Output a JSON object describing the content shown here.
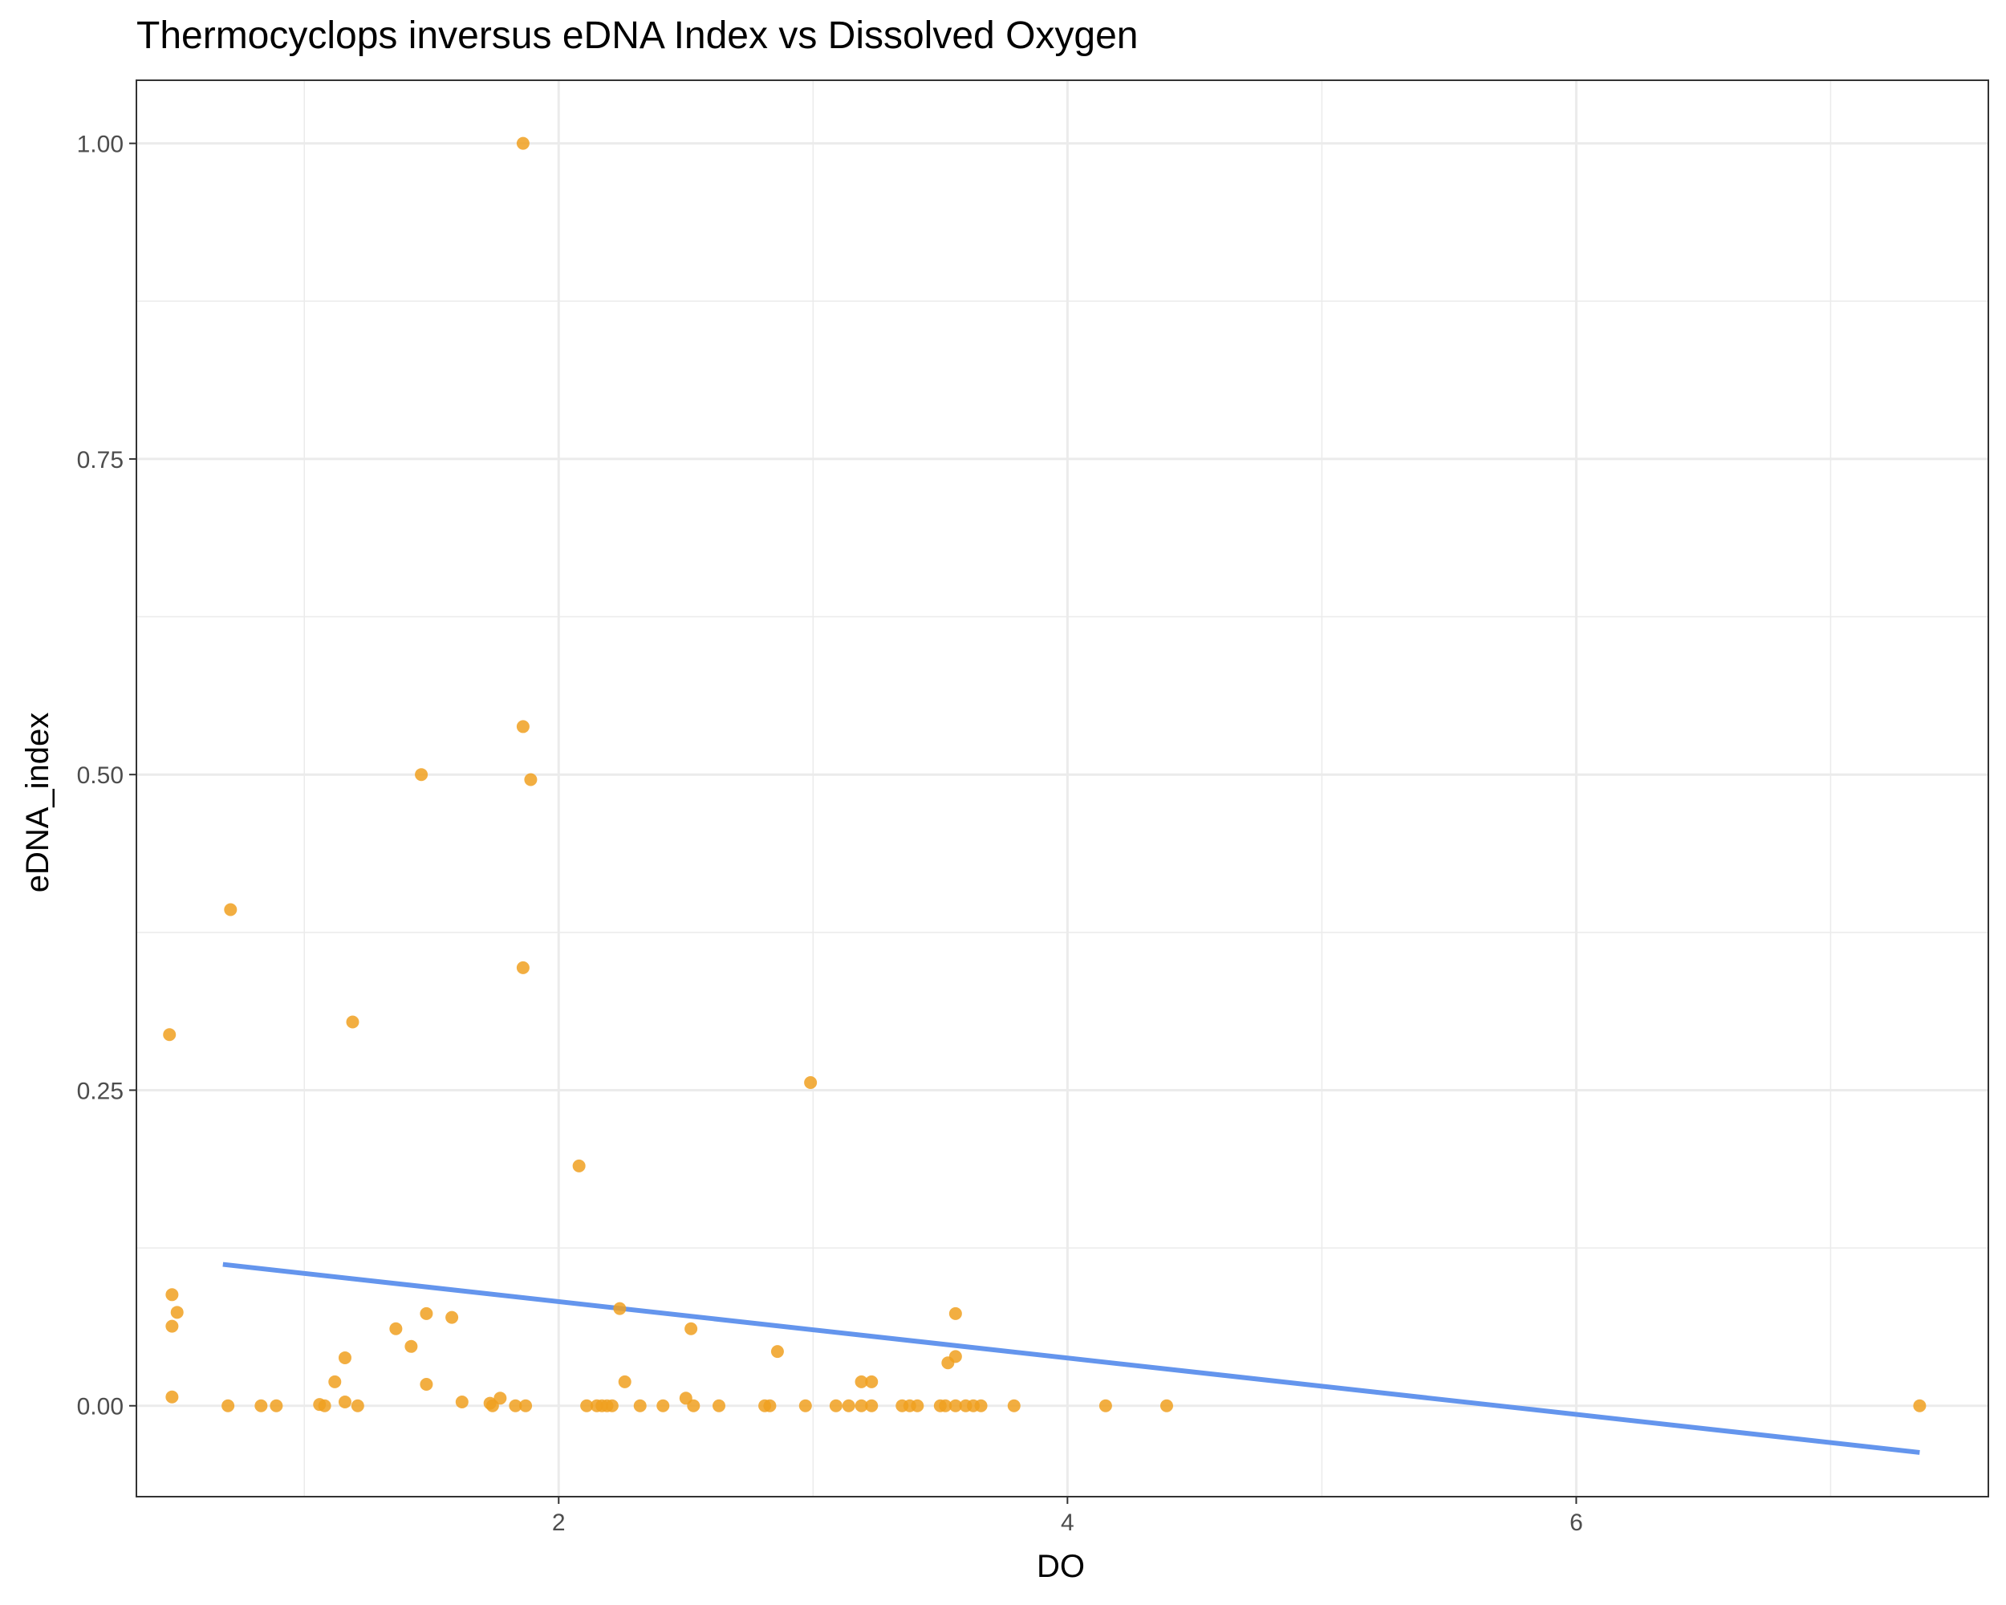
{
  "chart_data": {
    "type": "scatter",
    "title": "Thermocyclops inversus eDNA Index vs Dissolved Oxygen",
    "xlabel": "DO",
    "ylabel": "eDNA_index",
    "xlim": [
      0.34,
      7.62
    ],
    "ylim": [
      -0.072,
      1.05
    ],
    "x_ticks": [
      2,
      4,
      6
    ],
    "x_tick_labels": [
      "2",
      "4",
      "6"
    ],
    "x_minor_ticks": [
      1,
      3,
      5,
      7
    ],
    "y_ticks": [
      0,
      0.25,
      0.5,
      0.75,
      1.0
    ],
    "y_tick_labels": [
      "0.00",
      "0.25",
      "0.50",
      "0.75",
      "1.00"
    ],
    "y_minor_ticks": [
      0.125,
      0.375,
      0.625,
      0.875
    ],
    "grid": true,
    "point_color": "#F0A020",
    "line_color": "#6495ED",
    "trend_line": {
      "x": [
        0.68,
        7.35
      ],
      "y": [
        0.112,
        -0.037
      ]
    },
    "points": [
      [
        1.86,
        1.0
      ],
      [
        1.86,
        0.538
      ],
      [
        1.46,
        0.5
      ],
      [
        1.89,
        0.496
      ],
      [
        0.71,
        0.393
      ],
      [
        1.86,
        0.347
      ],
      [
        1.19,
        0.304
      ],
      [
        0.47,
        0.294
      ],
      [
        2.99,
        0.256
      ],
      [
        2.08,
        0.19
      ],
      [
        0.48,
        0.088
      ],
      [
        2.24,
        0.077
      ],
      [
        0.5,
        0.074
      ],
      [
        1.48,
        0.073
      ],
      [
        3.56,
        0.073
      ],
      [
        1.58,
        0.07
      ],
      [
        0.48,
        0.063
      ],
      [
        1.36,
        0.061
      ],
      [
        2.52,
        0.061
      ],
      [
        1.42,
        0.047
      ],
      [
        2.86,
        0.043
      ],
      [
        3.56,
        0.039
      ],
      [
        1.16,
        0.038
      ],
      [
        3.53,
        0.034
      ],
      [
        1.12,
        0.019
      ],
      [
        2.26,
        0.019
      ],
      [
        3.19,
        0.019
      ],
      [
        3.23,
        0.019
      ],
      [
        1.48,
        0.017
      ],
      [
        0.48,
        0.007
      ],
      [
        1.77,
        0.006
      ],
      [
        2.5,
        0.006
      ],
      [
        1.06,
        0.001
      ],
      [
        1.73,
        0.002
      ],
      [
        1.16,
        0.003
      ],
      [
        1.62,
        0.003
      ],
      [
        0.7,
        0.0
      ],
      [
        0.83,
        0.0
      ],
      [
        0.89,
        0.0
      ],
      [
        1.08,
        0.0
      ],
      [
        1.21,
        0.0
      ],
      [
        1.74,
        0.0
      ],
      [
        1.83,
        0.0
      ],
      [
        1.87,
        0.0
      ],
      [
        2.11,
        0.0
      ],
      [
        2.15,
        0.0
      ],
      [
        2.17,
        0.0
      ],
      [
        2.19,
        0.0
      ],
      [
        2.21,
        0.0
      ],
      [
        2.32,
        0.0
      ],
      [
        2.41,
        0.0
      ],
      [
        2.53,
        0.0
      ],
      [
        2.63,
        0.0
      ],
      [
        2.81,
        0.0
      ],
      [
        2.83,
        0.0
      ],
      [
        2.97,
        0.0
      ],
      [
        3.09,
        0.0
      ],
      [
        3.14,
        0.0
      ],
      [
        3.19,
        0.0
      ],
      [
        3.23,
        0.0
      ],
      [
        3.35,
        0.0
      ],
      [
        3.38,
        0.0
      ],
      [
        3.41,
        0.0
      ],
      [
        3.5,
        0.0
      ],
      [
        3.52,
        0.0
      ],
      [
        3.56,
        0.0
      ],
      [
        3.6,
        0.0
      ],
      [
        3.63,
        0.0
      ],
      [
        3.66,
        0.0
      ],
      [
        3.79,
        0.0
      ],
      [
        4.15,
        0.0
      ],
      [
        4.39,
        0.0
      ],
      [
        7.35,
        0.0
      ]
    ]
  }
}
